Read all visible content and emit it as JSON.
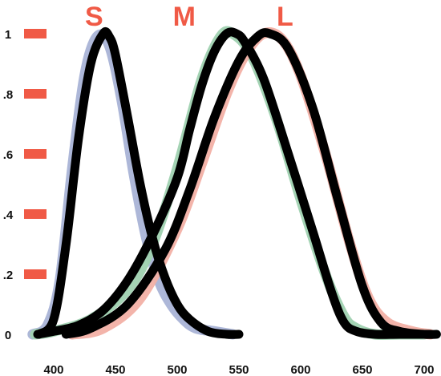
{
  "chart_data": {
    "type": "line",
    "title": "",
    "xlabel": "",
    "ylabel": "",
    "xlim": [
      385,
      705
    ],
    "ylim": [
      0,
      1
    ],
    "x_ticks": [
      "400",
      "450",
      "500",
      "550",
      "600",
      "650",
      "700"
    ],
    "y_ticks": [
      "0",
      ".2",
      ".4",
      ".6",
      ".8",
      "1"
    ],
    "grid": false,
    "legend": "none",
    "series_labels": [
      {
        "text": "S",
        "x": 450
      },
      {
        "text": "M",
        "x": 490
      },
      {
        "text": "L",
        "x": 600
      }
    ],
    "series": [
      {
        "name": "S",
        "color": "#a9b3d6",
        "x": [
          383,
          395,
          405,
          415,
          425,
          435,
          445,
          455,
          465,
          475,
          485,
          495,
          505,
          515,
          530,
          545
        ],
        "values": [
          0.0,
          0.03,
          0.18,
          0.55,
          0.86,
          0.99,
          0.96,
          0.78,
          0.53,
          0.32,
          0.18,
          0.1,
          0.05,
          0.02,
          0.01,
          0.0
        ]
      },
      {
        "name": "M",
        "color": "#9fd1b0",
        "x": [
          385,
          400,
          430,
          460,
          480,
          500,
          520,
          535,
          545,
          560,
          580,
          600,
          620,
          635,
          645,
          660,
          680,
          700
        ],
        "values": [
          0.0,
          0.01,
          0.05,
          0.15,
          0.3,
          0.55,
          0.85,
          0.99,
          1.0,
          0.93,
          0.72,
          0.45,
          0.2,
          0.06,
          0.02,
          0.0,
          0.0,
          0.0
        ]
      },
      {
        "name": "L",
        "color": "#f2b0a5",
        "x": [
          415,
          440,
          470,
          500,
          520,
          540,
          555,
          570,
          585,
          600,
          620,
          640,
          655,
          670,
          690,
          705
        ],
        "values": [
          0.0,
          0.02,
          0.12,
          0.35,
          0.57,
          0.8,
          0.93,
          1.0,
          0.98,
          0.86,
          0.6,
          0.3,
          0.12,
          0.04,
          0.01,
          0.0
        ]
      },
      {
        "name": "S",
        "color": "#000000",
        "x": [
          388,
          400,
          410,
          420,
          430,
          440,
          445,
          450,
          460,
          470,
          480,
          490,
          500,
          510,
          525,
          540,
          550
        ],
        "values": [
          0.0,
          0.05,
          0.3,
          0.65,
          0.9,
          1.0,
          0.99,
          0.93,
          0.72,
          0.5,
          0.32,
          0.19,
          0.1,
          0.05,
          0.01,
          0.0,
          0.0
        ]
      },
      {
        "name": "M",
        "color": "#000000",
        "x": [
          387,
          400,
          420,
          440,
          460,
          480,
          500,
          510,
          520,
          530,
          540,
          548,
          555,
          570,
          590,
          610,
          625,
          635,
          645,
          660,
          680,
          705
        ],
        "values": [
          0.0,
          0.01,
          0.03,
          0.08,
          0.18,
          0.33,
          0.52,
          0.68,
          0.83,
          0.94,
          1.0,
          1.0,
          0.97,
          0.85,
          0.6,
          0.34,
          0.14,
          0.04,
          0.01,
          0.0,
          0.0,
          0.0
        ]
      },
      {
        "name": "L",
        "color": "#000000",
        "x": [
          410,
          430,
          460,
          490,
          510,
          530,
          550,
          565,
          575,
          590,
          610,
          630,
          650,
          665,
          680,
          700,
          710
        ],
        "values": [
          0.0,
          0.02,
          0.1,
          0.28,
          0.48,
          0.72,
          0.91,
          0.99,
          1.0,
          0.95,
          0.75,
          0.45,
          0.16,
          0.04,
          0.01,
          0.0,
          0.0
        ]
      }
    ],
    "colors": {
      "tick_marker": "#f05a46",
      "label": "#f05a46",
      "tick_text": "#111111"
    }
  }
}
